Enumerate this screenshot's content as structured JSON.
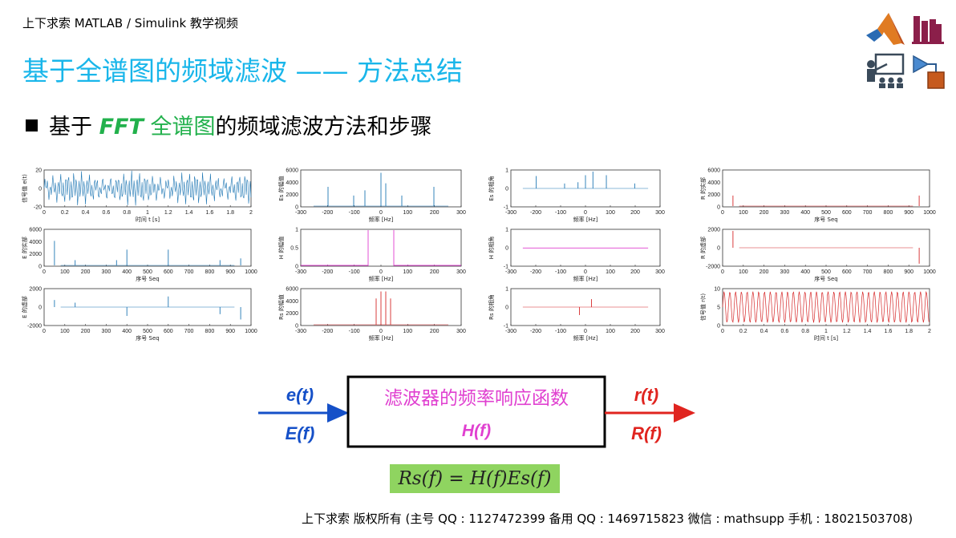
{
  "header": {
    "caption": "上下求索 MATLAB / Simulink 教学视频",
    "title": "基于全谱图的频域滤波 —— 方法总结"
  },
  "bullet": {
    "prefix": "基于",
    "fft": "FFT",
    "highlight": "全谱图",
    "suffix": "的频域滤波方法和步骤"
  },
  "icons": [
    "matlab-logo-icon",
    "books-icon",
    "teacher-icon",
    "simulink-icon"
  ],
  "plots": [
    {
      "id": "p11",
      "ylabel": "信号值 e(t)",
      "xlabel": "时间 t [s]",
      "xticks": [
        "0",
        "0.2",
        "0.4",
        "0.6",
        "0.8",
        "1",
        "1.2",
        "1.4",
        "1.6",
        "1.8",
        "2"
      ],
      "yticks": [
        "20",
        "0",
        "-20"
      ],
      "color": "#1f77b4"
    },
    {
      "id": "p12",
      "ylabel": "Es 的幅值",
      "xlabel": "频率 [Hz]",
      "xticks": [
        "-300",
        "-200",
        "-100",
        "0",
        "100",
        "200",
        "300"
      ],
      "yticks": [
        "6000",
        "4000",
        "2000",
        "0"
      ],
      "color": "#1f77b4"
    },
    {
      "id": "p13",
      "ylabel": "Es 的相角",
      "xlabel": "频率 [Hz]",
      "xticks": [
        "-300",
        "-200",
        "-100",
        "0",
        "100",
        "200",
        "300"
      ],
      "yticks": [
        "1",
        "0",
        "-1"
      ],
      "color": "#1f77b4"
    },
    {
      "id": "p14",
      "ylabel": "R 的实部",
      "xlabel": "序号 Seq",
      "xticks": [
        "0",
        "100",
        "200",
        "300",
        "400",
        "500",
        "600",
        "700",
        "800",
        "900",
        "1000"
      ],
      "yticks": [
        "6000",
        "4000",
        "2000",
        "0"
      ],
      "color": "#d62728"
    },
    {
      "id": "p21",
      "ylabel": "E 的实部",
      "xlabel": "序号 Seq",
      "xticks": [
        "0",
        "100",
        "200",
        "300",
        "400",
        "500",
        "600",
        "700",
        "800",
        "900",
        "1000"
      ],
      "yticks": [
        "6000",
        "4000",
        "2000",
        "0"
      ],
      "color": "#1f77b4"
    },
    {
      "id": "p22",
      "ylabel": "H 的幅值",
      "xlabel": "频率 [Hz]",
      "xticks": [
        "-300",
        "-200",
        "-100",
        "0",
        "100",
        "200",
        "300"
      ],
      "yticks": [
        "1",
        "0.5",
        "0"
      ],
      "color": "#e040d0"
    },
    {
      "id": "p23",
      "ylabel": "H 的相角",
      "xlabel": "频率 [Hz]",
      "xticks": [
        "-300",
        "-200",
        "-100",
        "0",
        "100",
        "200",
        "300"
      ],
      "yticks": [
        "1",
        "0",
        "-1"
      ],
      "color": "#e040d0"
    },
    {
      "id": "p24",
      "ylabel": "R 的虚部",
      "xlabel": "序号 Seq",
      "xticks": [
        "0",
        "100",
        "200",
        "300",
        "400",
        "500",
        "600",
        "700",
        "800",
        "900",
        "1000"
      ],
      "yticks": [
        "2000",
        "0",
        "-2000"
      ],
      "color": "#d62728"
    },
    {
      "id": "p31",
      "ylabel": "E 的虚部",
      "xlabel": "序号 Seq",
      "xticks": [
        "0",
        "100",
        "200",
        "300",
        "400",
        "500",
        "600",
        "700",
        "800",
        "900",
        "1000"
      ],
      "yticks": [
        "2000",
        "0",
        "-2000"
      ],
      "color": "#1f77b4"
    },
    {
      "id": "p32",
      "ylabel": "Rs 的幅值",
      "xlabel": "频率 [Hz]",
      "xticks": [
        "-300",
        "-200",
        "-100",
        "0",
        "100",
        "200",
        "300"
      ],
      "yticks": [
        "6000",
        "4000",
        "2000",
        "0"
      ],
      "color": "#d62728"
    },
    {
      "id": "p33",
      "ylabel": "Rs 的相角",
      "xlabel": "频率 [Hz]",
      "xticks": [
        "-300",
        "-200",
        "-100",
        "0",
        "100",
        "200",
        "300"
      ],
      "yticks": [
        "1",
        "0",
        "-1"
      ],
      "color": "#d62728"
    },
    {
      "id": "p34",
      "ylabel": "信号值 r(t)",
      "xlabel": "时间 t [s]",
      "xticks": [
        "0",
        "0.2",
        "0.4",
        "0.6",
        "0.8",
        "1",
        "1.2",
        "1.4",
        "1.6",
        "1.8",
        "2"
      ],
      "yticks": [
        "10",
        "5",
        "0"
      ],
      "color": "#d62728"
    }
  ],
  "diagram": {
    "input_time": "e(t)",
    "input_freq": "E(f)",
    "box_title": "滤波器的频率响应函数",
    "box_sub": "H(f)",
    "output_time": "r(t)",
    "output_freq": "R(f)",
    "blue": "#1550c8",
    "red": "#e0241f",
    "magenta": "#e040d0"
  },
  "formula": "Rs(f) = H(f)Es(f)",
  "footer": "上下求索  版权所有  (主号 QQ : 1127472399   备用 QQ : 1469715823   微信 : mathsupp   手机 : 18021503708)"
}
